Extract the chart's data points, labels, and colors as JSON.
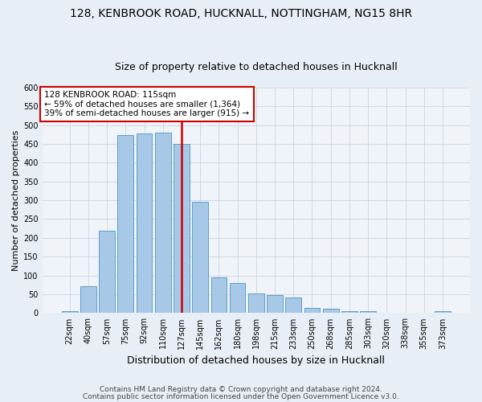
{
  "title1": "128, KENBROOK ROAD, HUCKNALL, NOTTINGHAM, NG15 8HR",
  "title2": "Size of property relative to detached houses in Hucknall",
  "xlabel": "Distribution of detached houses by size in Hucknall",
  "ylabel": "Number of detached properties",
  "categories": [
    "22sqm",
    "40sqm",
    "57sqm",
    "75sqm",
    "92sqm",
    "110sqm",
    "127sqm",
    "145sqm",
    "162sqm",
    "180sqm",
    "198sqm",
    "215sqm",
    "233sqm",
    "250sqm",
    "268sqm",
    "285sqm",
    "303sqm",
    "320sqm",
    "338sqm",
    "355sqm",
    "373sqm"
  ],
  "values": [
    5,
    72,
    220,
    473,
    478,
    480,
    450,
    295,
    95,
    80,
    53,
    47,
    42,
    13,
    12,
    6,
    5,
    0,
    0,
    0,
    5
  ],
  "bar_color": "#a8c8e8",
  "bar_edge_color": "#5a9ec8",
  "vline_x": 6.0,
  "vline_color": "#cc0000",
  "annotation_lines": [
    "128 KENBROOK ROAD: 115sqm",
    "← 59% of detached houses are smaller (1,364)",
    "39% of semi-detached houses are larger (915) →"
  ],
  "annotation_box_color": "#ffffff",
  "annotation_box_edge": "#cc0000",
  "ylim": [
    0,
    600
  ],
  "yticks": [
    0,
    50,
    100,
    150,
    200,
    250,
    300,
    350,
    400,
    450,
    500,
    550,
    600
  ],
  "footer1": "Contains HM Land Registry data © Crown copyright and database right 2024.",
  "footer2": "Contains public sector information licensed under the Open Government Licence v3.0.",
  "bg_color": "#e8eef5",
  "plot_bg_color": "#f0f4f8",
  "title1_fontsize": 10,
  "title2_fontsize": 9,
  "ylabel_fontsize": 8,
  "xlabel_fontsize": 9,
  "tick_fontsize": 7,
  "annot_fontsize": 7.5,
  "footer_fontsize": 6.5
}
